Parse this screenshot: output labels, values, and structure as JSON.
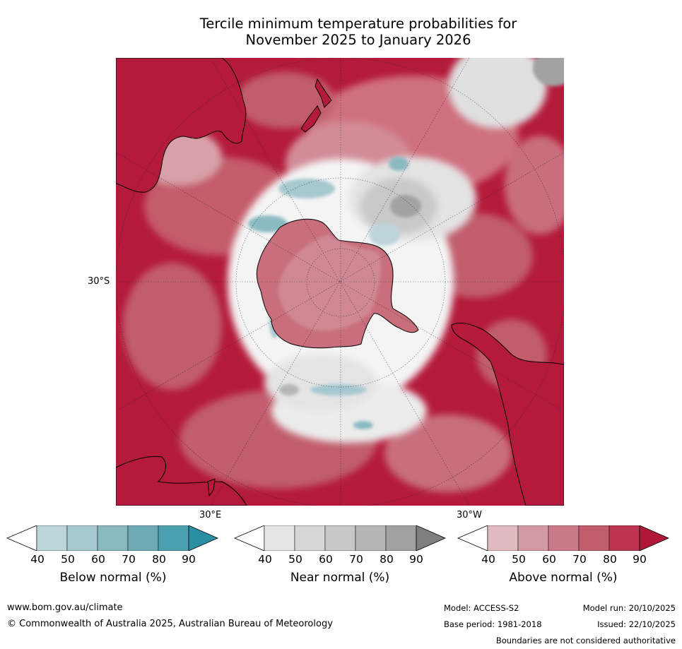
{
  "title": {
    "line1": "Tercile minimum temperature probabilities for",
    "line2": "November 2025 to January 2026"
  },
  "map": {
    "projection": "south polar stereographic",
    "latitude_label": "30°S",
    "longitude_labels": {
      "east": "30°E",
      "west": "30°W"
    }
  },
  "colorbars": [
    {
      "label": "Below normal (%)",
      "ticks": [
        "40",
        "50",
        "60",
        "70",
        "80",
        "90"
      ],
      "colors": [
        "#ffffff",
        "#bcd5db",
        "#a6c8cf",
        "#8ab9c2",
        "#6eabb7",
        "#4ba1b0",
        "#2a8fa3"
      ]
    },
    {
      "label": "Near normal (%)",
      "ticks": [
        "40",
        "50",
        "60",
        "70",
        "80",
        "90"
      ],
      "colors": [
        "#ffffff",
        "#e5e5e5",
        "#d7d7d7",
        "#c8c8c8",
        "#b6b6b6",
        "#a2a2a2",
        "#7e7e7e"
      ]
    },
    {
      "label": "Above normal (%)",
      "ticks": [
        "40",
        "50",
        "60",
        "70",
        "80",
        "90"
      ],
      "colors": [
        "#ffffff",
        "#e0bcc1",
        "#d49aa3",
        "#c97a86",
        "#c15d6d",
        "#bc3450",
        "#b0183a"
      ]
    }
  ],
  "footer": {
    "url": "www.bom.gov.au/climate",
    "copyright": "© Commonwealth of Australia 2025, Australian Bureau of Meteorology",
    "model": "Model: ACCESS-S2",
    "base_period": "Base period: 1981-2018",
    "model_run": "Model run: 20/10/2025",
    "issued": "Issued: 22/10/2025",
    "disclaimer": "Boundaries are not considered authoritative"
  }
}
